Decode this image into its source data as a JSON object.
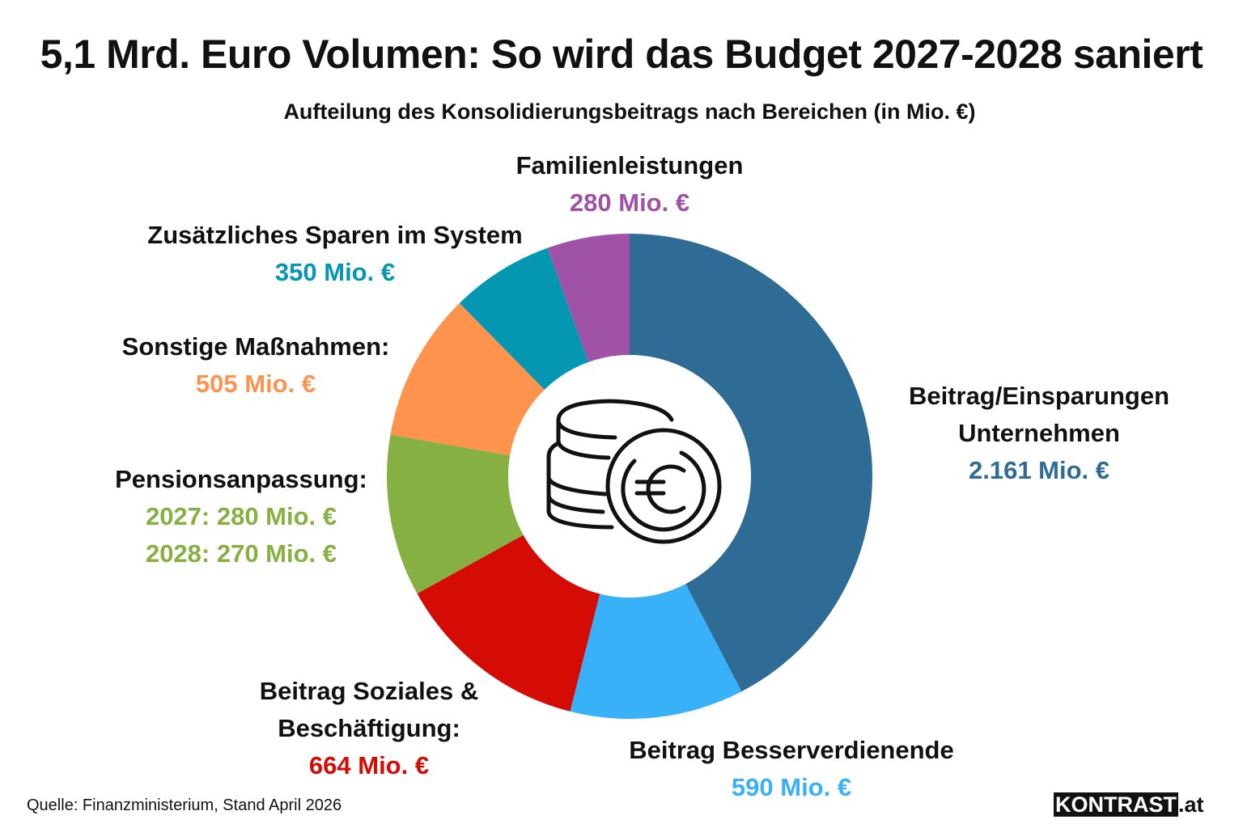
{
  "title": "5,1 Mrd. Euro Volumen: So wird das Budget 2027-2028 saniert",
  "subtitle": "Aufteilung des Konsolidierungsbeitrags nach Bereichen (in Mio. €)",
  "center_icon": "euro-coins-icon",
  "source": "Quelle: Finanzministerium, Stand April 2026",
  "brand": {
    "name": "KONTRAST",
    "tld": ".at"
  },
  "chart_data": {
    "type": "pie",
    "variant": "donut",
    "title": "5,1 Mrd. Euro Volumen: So wird das Budget 2027-2028 saniert",
    "subtitle": "Aufteilung des Konsolidierungsbeitrags nach Bereichen (in Mio. €)",
    "unit": "Mio. €",
    "total": 5100,
    "start": "top",
    "direction": "clockwise",
    "slices": [
      {
        "key": "unternehmen",
        "label": "Beitrag/Einsparungen Unternehmen",
        "label_lines": [
          "Beitrag/Einsparungen",
          "Unternehmen"
        ],
        "value": 2161,
        "value_lines": [
          "2.161 Mio. €"
        ],
        "color": "#2e6c96"
      },
      {
        "key": "besserverdienende",
        "label": "Beitrag Besserverdienende",
        "label_lines": [
          "Beitrag Besserverdienende"
        ],
        "value": 590,
        "value_lines": [
          "590 Mio. €"
        ],
        "color": "#38b1f8"
      },
      {
        "key": "soziales",
        "label": "Beitrag Soziales & Beschäftigung:",
        "label_lines": [
          "Beitrag Soziales &",
          "Beschäftigung:"
        ],
        "value": 664,
        "value_lines": [
          "664 Mio. €"
        ],
        "color": "#d50b05"
      },
      {
        "key": "pension",
        "label": "Pensionsanpassung:",
        "label_lines": [
          "Pensionsanpassung:"
        ],
        "value": 550,
        "value_lines": [
          "2027: 280 Mio. €",
          "2028: 270 Mio. €"
        ],
        "breakdown": [
          {
            "year": "2027",
            "value": 280
          },
          {
            "year": "2028",
            "value": 270
          }
        ],
        "color": "#86b042"
      },
      {
        "key": "sonstige",
        "label": "Sonstige Maßnahmen:",
        "label_lines": [
          "Sonstige Maßnahmen:"
        ],
        "value": 505,
        "value_lines": [
          "505 Mio. €"
        ],
        "color": "#fe934e"
      },
      {
        "key": "system",
        "label": "Zusätzliches Sparen im System",
        "label_lines": [
          "Zusätzliches Sparen im System"
        ],
        "value": 350,
        "value_lines": [
          "350 Mio. €"
        ],
        "color": "#0596b1"
      },
      {
        "key": "familien",
        "label": "Familienleistungen",
        "label_lines": [
          "Familienleistungen"
        ],
        "value": 280,
        "value_lines": [
          "280 Mio. €"
        ],
        "color": "#a052a6"
      }
    ],
    "legend": "none (direct labels)"
  }
}
